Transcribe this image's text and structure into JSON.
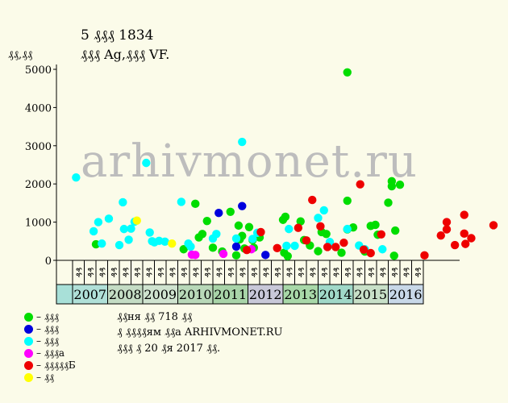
{
  "chart_data": {
    "type": "scatter",
    "title": "5 ₰₰₰ 1834",
    "subtitle": "₰₰₰ Ag,₰₰₰ VF.",
    "ylabel": "₰₰,₰₰",
    "ylim": [
      0,
      5000
    ],
    "yticks": [
      0,
      1000,
      2000,
      3000,
      4000,
      5000
    ],
    "grid": false,
    "watermark": "arhivmonet.ru",
    "months": [
      "₰₰",
      "₰₰",
      "₰₰"
    ],
    "years": [
      {
        "label": "2007",
        "color": "#b0e0d8"
      },
      {
        "label": "2008",
        "color": "#c4dcc4"
      },
      {
        "label": "2009",
        "color": "#cfe3cf"
      },
      {
        "label": "2010",
        "color": "#b8d8b8"
      },
      {
        "label": "2011",
        "color": "#a8d4a8"
      },
      {
        "label": "2012",
        "color": "#c8c8d8"
      },
      {
        "label": "2013",
        "color": "#a8d8a8"
      },
      {
        "label": "2014",
        "color": "#a0d8c8"
      },
      {
        "label": "2015",
        "color": "#c8e0c8"
      },
      {
        "label": "2016",
        "color": "#c8d8e8"
      }
    ],
    "leading_cell_color": "#a8e0d8",
    "series": [
      {
        "name": "₰₰₰",
        "color": "#00dd00",
        "points": [
          [
            1.5,
            420
          ],
          [
            9.0,
            290
          ],
          [
            10.0,
            1480
          ],
          [
            10.3,
            600
          ],
          [
            10.6,
            690
          ],
          [
            11.0,
            1030
          ],
          [
            11.5,
            330
          ],
          [
            12.3,
            230
          ],
          [
            13.0,
            1270
          ],
          [
            13.5,
            130
          ],
          [
            13.7,
            910
          ],
          [
            13.8,
            550
          ],
          [
            14.0,
            640
          ],
          [
            14.2,
            310
          ],
          [
            14.6,
            870
          ],
          [
            14.9,
            530
          ],
          [
            15.0,
            330
          ],
          [
            15.5,
            600
          ],
          [
            17.5,
            1060
          ],
          [
            17.7,
            1140
          ],
          [
            17.6,
            200
          ],
          [
            17.9,
            110
          ],
          [
            19.0,
            1020
          ],
          [
            19.3,
            530
          ],
          [
            19.8,
            390
          ],
          [
            20.5,
            240
          ],
          [
            20.8,
            740
          ],
          [
            21.2,
            690
          ],
          [
            22.5,
            200
          ],
          [
            23.0,
            1560
          ],
          [
            23.0,
            810
          ],
          [
            23.5,
            860
          ],
          [
            24.5,
            230
          ],
          [
            25.0,
            900
          ],
          [
            25.4,
            930
          ],
          [
            25.6,
            670
          ],
          [
            26.5,
            1510
          ],
          [
            26.8,
            2070
          ],
          [
            26.8,
            1940
          ],
          [
            27.1,
            780
          ],
          [
            27.0,
            120
          ],
          [
            27.5,
            1980
          ],
          [
            23.0,
            4920
          ]
        ]
      },
      {
        "name": "₰₰₰",
        "color": "#0000dd",
        "points": [
          [
            12.0,
            1240
          ],
          [
            13.5,
            360
          ],
          [
            14.0,
            1420
          ],
          [
            16.0,
            140
          ]
        ]
      },
      {
        "name": "₰₰₰",
        "color": "#00ffff",
        "points": [
          [
            -0.2,
            2170
          ],
          [
            1.3,
            760
          ],
          [
            1.7,
            1000
          ],
          [
            2.0,
            440
          ],
          [
            2.6,
            1090
          ],
          [
            3.5,
            400
          ],
          [
            3.8,
            1520
          ],
          [
            3.9,
            820
          ],
          [
            4.3,
            540
          ],
          [
            4.5,
            830
          ],
          [
            4.8,
            1010
          ],
          [
            5.8,
            2550
          ],
          [
            6.1,
            730
          ],
          [
            6.3,
            500
          ],
          [
            6.5,
            470
          ],
          [
            6.9,
            510
          ],
          [
            7.4,
            490
          ],
          [
            8.8,
            1530
          ],
          [
            9.4,
            440
          ],
          [
            9.6,
            360
          ],
          [
            11.5,
            570
          ],
          [
            11.8,
            690
          ],
          [
            13.5,
            570
          ],
          [
            14.0,
            3100
          ],
          [
            14.9,
            560
          ],
          [
            15.3,
            720
          ],
          [
            17.8,
            380
          ],
          [
            18.0,
            820
          ],
          [
            18.5,
            380
          ],
          [
            20.5,
            1110
          ],
          [
            21.0,
            1310
          ],
          [
            21.5,
            480
          ],
          [
            23.0,
            820
          ],
          [
            24.0,
            390
          ],
          [
            24.5,
            290
          ],
          [
            26.0,
            290
          ]
        ]
      },
      {
        "name": "₰₰₰а",
        "color": "#ff00ff",
        "points": [
          [
            9.7,
            150
          ],
          [
            10.0,
            140
          ],
          [
            12.4,
            170
          ],
          [
            14.8,
            290
          ]
        ]
      },
      {
        "name": "₰₰₰₰₰Б",
        "color": "#ee0000",
        "points": [
          [
            14.4,
            270
          ],
          [
            15.6,
            740
          ],
          [
            17.0,
            320
          ],
          [
            18.8,
            850
          ],
          [
            19.5,
            520
          ],
          [
            20.0,
            1580
          ],
          [
            20.7,
            890
          ],
          [
            21.3,
            350
          ],
          [
            22.0,
            350
          ],
          [
            22.7,
            460
          ],
          [
            24.1,
            1990
          ],
          [
            24.4,
            280
          ],
          [
            25.0,
            190
          ],
          [
            25.9,
            680
          ],
          [
            29.6,
            130
          ],
          [
            31.0,
            650
          ],
          [
            31.5,
            810
          ],
          [
            31.5,
            1000
          ],
          [
            32.2,
            400
          ],
          [
            33.0,
            1190
          ],
          [
            33.0,
            700
          ],
          [
            33.1,
            430
          ],
          [
            33.6,
            580
          ],
          [
            35.5,
            920
          ]
        ]
      },
      {
        "name": "₰₰",
        "color": "#ffff00",
        "points": [
          [
            5.0,
            1040
          ],
          [
            8.0,
            440
          ]
        ]
      }
    ]
  },
  "notes": [
    "₰₰ня ₰₰ 718 ₰₰",
    "₰ ₰₰₰₰ям ₰₰а ARHIVMONET.RU",
    "₰₰₰ ₰ 20 ₰я 2017 ₰₰."
  ]
}
